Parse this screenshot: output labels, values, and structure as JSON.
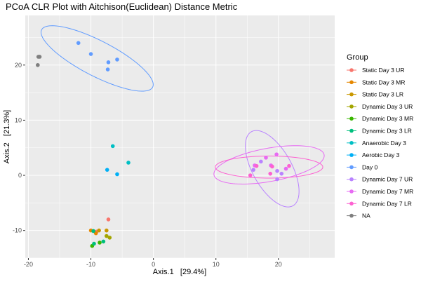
{
  "chart_data": {
    "type": "scatter",
    "title": "PCoA CLR Plot with Aitchison(Euclidean) Distance Metric",
    "xlabel": "Axis.1   [29.4%]",
    "ylabel": "Axis.2   [21.3%]",
    "xlim": [
      -20.5,
      29
    ],
    "ylim": [
      -15,
      29
    ],
    "x_ticks": [
      -20,
      -10,
      0,
      10,
      20
    ],
    "y_ticks": [
      -10,
      0,
      10,
      20
    ],
    "grid": true,
    "legend_title": "Group",
    "legend_position": "right",
    "series": [
      {
        "name": "Static Day 3 UR",
        "color": "#F8766D",
        "points": [
          [
            -7.2,
            -8.0
          ],
          [
            -9.1,
            -10.2
          ]
        ]
      },
      {
        "name": "Static Day 3 MR",
        "color": "#E58700",
        "points": [
          [
            -10.0,
            -10.0
          ],
          [
            -9.2,
            -10.5
          ]
        ]
      },
      {
        "name": "Static Day 3 LR",
        "color": "#C99800",
        "points": [
          [
            -8.7,
            -10.0
          ],
          [
            -7.5,
            -10.0
          ]
        ]
      },
      {
        "name": "Dynamic Day 3 UR",
        "color": "#A3A500",
        "points": [
          [
            -7.0,
            -11.3
          ],
          [
            -7.5,
            -11.0
          ]
        ]
      },
      {
        "name": "Dynamic Day 3 MR",
        "color": "#39B600",
        "points": [
          [
            -9.8,
            -12.8
          ],
          [
            -8.6,
            -12.2
          ]
        ]
      },
      {
        "name": "Dynamic Day 3 LR",
        "color": "#00BF7D",
        "points": [
          [
            -9.5,
            -12.4
          ],
          [
            -8.0,
            -12.0
          ],
          [
            -9.6,
            -10.1
          ]
        ]
      },
      {
        "name": "Anaerobic Day 3",
        "color": "#00BFC4",
        "points": [
          [
            -6.5,
            5.3
          ],
          [
            -4.0,
            2.3
          ]
        ]
      },
      {
        "name": "Aerobic Day 3",
        "color": "#00B0F6",
        "points": [
          [
            -7.4,
            1.0
          ],
          [
            -5.8,
            0.2
          ]
        ]
      },
      {
        "name": "Day 0",
        "color": "#619CFF",
        "points": [
          [
            -12.0,
            24.0
          ],
          [
            -10.0,
            22.0
          ],
          [
            -7.2,
            20.5
          ],
          [
            -5.8,
            21.0
          ],
          [
            -7.3,
            19.2
          ]
        ]
      },
      {
        "name": "Dynamic Day 7 UR",
        "color": "#B983FF",
        "points": [
          [
            16.0,
            1.0
          ],
          [
            17.2,
            2.5
          ],
          [
            19.8,
            0.8
          ],
          [
            20.5,
            0.3
          ],
          [
            19.8,
            -0.7
          ]
        ]
      },
      {
        "name": "Dynamic Day 7 MR",
        "color": "#E76BF3",
        "points": [
          [
            16.2,
            1.8
          ],
          [
            18.0,
            3.2
          ],
          [
            19.7,
            3.8
          ],
          [
            18.8,
            1.8
          ],
          [
            21.2,
            1.2
          ]
        ]
      },
      {
        "name": "Dynamic Day 7 LR",
        "color": "#FD61D1",
        "points": [
          [
            15.5,
            0.0
          ],
          [
            19.0,
            1.6
          ],
          [
            21.7,
            1.7
          ],
          [
            18.7,
            0.3
          ],
          [
            16.5,
            1.7
          ]
        ]
      },
      {
        "name": "NA",
        "color": "#7F7F7F",
        "points": [
          [
            -18.4,
            21.5
          ],
          [
            -18.2,
            21.5
          ],
          [
            -18.5,
            20.0
          ]
        ]
      }
    ],
    "ellipses": [
      {
        "group": "Day 0",
        "color": "#619CFF",
        "cx": -9.0,
        "cy": 21.2,
        "rx": 10.3,
        "ry": 3.1,
        "angle_deg": -31
      },
      {
        "group": "Dynamic Day 7 UR",
        "color": "#B983FF",
        "cx": 19.0,
        "cy": 1.2,
        "rx": 7.5,
        "ry": 3.2,
        "angle_deg": -65
      },
      {
        "group": "Dynamic Day 7 MR",
        "color": "#E76BF3",
        "cx": 18.5,
        "cy": 1.9,
        "rx": 9.0,
        "ry": 3.0,
        "angle_deg": 12
      },
      {
        "group": "Dynamic Day 7 LR",
        "color": "#FD61D1",
        "cx": 18.5,
        "cy": 1.5,
        "rx": 8.6,
        "ry": 2.0,
        "angle_deg": 0
      }
    ]
  }
}
